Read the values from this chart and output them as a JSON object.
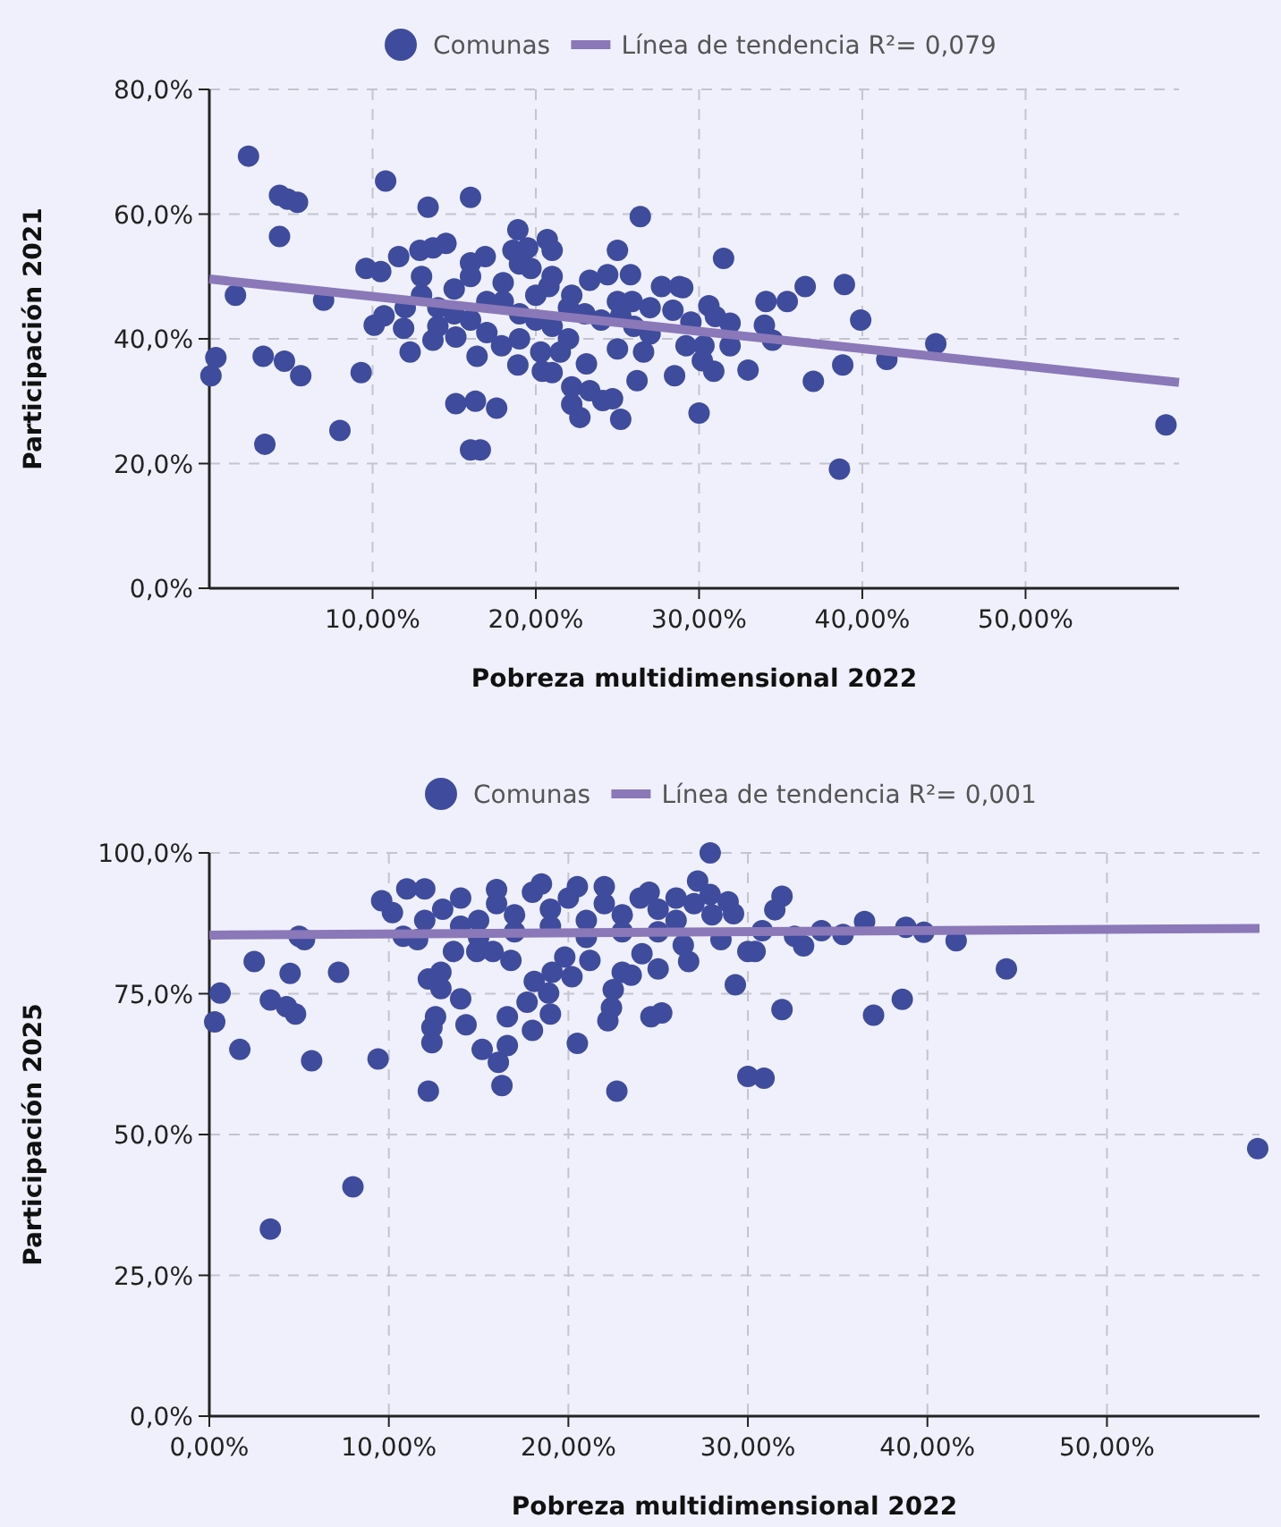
{
  "chart_data": [
    {
      "type": "scatter",
      "xlabel": "Pobreza multidimensional 2022",
      "ylabel": "Participación 2021",
      "legend": "top",
      "grid": true,
      "xlim": [
        0,
        59.4
      ],
      "ylim": [
        0,
        80
      ],
      "xticks": [
        {
          "value": 10,
          "label": "10,00%"
        },
        {
          "value": 20,
          "label": "20,00%"
        },
        {
          "value": 30,
          "label": "30,00%"
        },
        {
          "value": 40,
          "label": "40,00%"
        },
        {
          "value": 50,
          "label": "50,00%"
        }
      ],
      "yticks": [
        {
          "value": 0,
          "label": "0,0%"
        },
        {
          "value": 20,
          "label": "20,0%"
        },
        {
          "value": 40,
          "label": "40,0%"
        },
        {
          "value": 60,
          "label": "60,0%"
        },
        {
          "value": 80,
          "label": "80,0%"
        }
      ],
      "series": [
        {
          "name": "Comunas",
          "color": "#3f4b9c",
          "marker": "circle",
          "x": [
            0.1,
            0.4,
            2.4,
            1.6,
            4.3,
            4.8,
            5.4,
            4.3,
            3.3,
            4.6,
            5.6,
            3.4,
            8.0,
            7.0,
            9.3,
            10.8,
            13.4,
            16.0,
            15.1,
            16.3,
            17.6,
            16.0,
            16.6,
            18.9,
            26.4,
            25.0,
            31.5,
            26.2,
            25.2,
            22.2,
            22.7,
            24.1,
            24.7,
            28.5,
            30.0,
            20.4,
            21.0,
            22.2,
            12.3,
            16.4,
            18.9,
            9.6,
            10.1,
            36.5,
            38.9,
            35.4,
            34.1,
            39.9,
            34.0,
            34.5,
            44.5,
            41.5,
            38.8,
            37.0,
            33.0,
            38.6,
            58.6,
            30.6,
            31.0,
            31.9,
            31.9,
            30.3,
            30.2,
            30.9,
            29.0,
            10.5,
            11.6,
            10.7,
            11.9,
            12.9,
            13.7,
            14.5,
            13.7,
            15.1,
            16.9,
            16.0,
            17.9,
            18.6,
            19.5,
            20.7,
            21.0,
            19.7,
            20.3,
            21.5,
            20.8,
            22.2,
            23.3,
            24.4,
            25.8,
            25.9,
            25.2,
            25.0,
            23.1,
            23.3,
            26.6,
            27.0,
            27.7,
            28.8,
            28.4,
            29.5,
            29.2,
            14,
            15,
            16,
            17,
            18,
            19,
            20,
            21,
            22,
            23,
            17,
            19,
            15,
            13,
            12,
            18,
            20,
            24,
            26,
            21,
            16,
            14,
            22,
            25,
            27,
            13,
            19
          ],
          "values": [
            34.1,
            37.0,
            69.3,
            47.0,
            63.0,
            62.4,
            61.9,
            56.4,
            37.2,
            36.4,
            34.1,
            23.1,
            25.3,
            46.2,
            34.6,
            65.3,
            61.1,
            62.7,
            29.6,
            30.0,
            28.9,
            22.2,
            22.2,
            57.5,
            59.6,
            54.2,
            52.9,
            33.3,
            27.1,
            29.5,
            27.4,
            30.1,
            30.4,
            34.1,
            28.1,
            34.8,
            34.6,
            32.3,
            37.9,
            37.2,
            35.8,
            51.3,
            42.2,
            48.4,
            48.7,
            46.0,
            46.0,
            43.0,
            42.2,
            39.8,
            39.2,
            36.7,
            35.8,
            33.2,
            35.0,
            19.1,
            26.2,
            45.3,
            43.6,
            42.5,
            38.9,
            38.9,
            36.5,
            34.8,
            48.2,
            50.8,
            53.2,
            43.7,
            41.7,
            54.2,
            54.6,
            55.3,
            39.8,
            40.3,
            53.2,
            52.2,
            38.9,
            54.2,
            54.6,
            55.9,
            54.2,
            51.3,
            37.9,
            37.9,
            48.4,
            47.0,
            49.4,
            50.3,
            50.3,
            46.0,
            43.7,
            38.4,
            36.0,
            31.7,
            37.9,
            40.8,
            48.4,
            48.4,
            44.6,
            42.7,
            38.9,
            45,
            48,
            43,
            46,
            49,
            44,
            47,
            42,
            45,
            44,
            41,
            40,
            44,
            47,
            45,
            46,
            43,
            43,
            42,
            50,
            50,
            42,
            40,
            46,
            45,
            50,
            52
          ]
        },
        {
          "type": "line",
          "name": "Línea de tendencia R²= 0,079",
          "color": "#8a78b8",
          "x": [
            0,
            59.4
          ],
          "values": [
            49.6,
            33.0
          ]
        }
      ]
    },
    {
      "type": "scatter",
      "xlabel": "Pobreza multidimensional 2022",
      "ylabel": "Participación 2025",
      "legend": "top",
      "grid": true,
      "xlim": [
        0,
        58.5
      ],
      "ylim": [
        0,
        100
      ],
      "xticks": [
        {
          "value": 0,
          "label": "0,00%"
        },
        {
          "value": 10,
          "label": "10,00%"
        },
        {
          "value": 20,
          "label": "20,00%"
        },
        {
          "value": 30,
          "label": "30,00%"
        },
        {
          "value": 40,
          "label": "40,00%"
        },
        {
          "value": 50,
          "label": "50,00%"
        }
      ],
      "yticks": [
        {
          "value": 0,
          "label": "0,0%"
        },
        {
          "value": 25,
          "label": "25,0%"
        },
        {
          "value": 50,
          "label": "50,0%"
        },
        {
          "value": 75,
          "label": "75,0%"
        },
        {
          "value": 100,
          "label": "100,0%"
        }
      ],
      "series": [
        {
          "name": "Comunas",
          "color": "#3f4b9c",
          "marker": "circle",
          "x": [
            0.3,
            0.6,
            1.7,
            2.5,
            3.4,
            3.4,
            4.5,
            4.3,
            4.8,
            5.0,
            5.3,
            5.7,
            7.2,
            8.0,
            9.4,
            9.6,
            10.2,
            10.8,
            11.6,
            11.0,
            12.0,
            12.2,
            12.9,
            12.9,
            12.6,
            12.4,
            12.4,
            12.2,
            13.6,
            14.0,
            14.3,
            15.2,
            16.1,
            16.3,
            16.6,
            16.6,
            14.9,
            15.8,
            16.8,
            17.7,
            18.0,
            18.1,
            18.9,
            19.0,
            19.1,
            20.2,
            20.5,
            21.2,
            19.8,
            22.2,
            22.4,
            22.5,
            22.7,
            23.0,
            23.5,
            24.1,
            24.6,
            25.2,
            25.0,
            26.7,
            26.4,
            27.9,
            27.2,
            27.9,
            28.9,
            29.2,
            28.5,
            29.3,
            30.0,
            30.0,
            30.9,
            31.9,
            31.5,
            31.9,
            30.8,
            30.4,
            32.6,
            33.1,
            34.1,
            35.3,
            36.5,
            37.0,
            38.6,
            38.8,
            39.8,
            41.6,
            44.4,
            58.4,
            13,
            14,
            15,
            16,
            17,
            18,
            19,
            20,
            21,
            22,
            23,
            24,
            25,
            26,
            27,
            17,
            19,
            21,
            23,
            25,
            18.5,
            16,
            12,
            20.5,
            24.5,
            22,
            26,
            28,
            15,
            14
          ],
          "values": [
            70.0,
            75.1,
            65.1,
            80.7,
            73.9,
            33.2,
            78.6,
            72.7,
            71.4,
            85.2,
            84.6,
            63.1,
            78.8,
            40.7,
            63.4,
            91.5,
            89.4,
            85.2,
            84.6,
            93.6,
            93.6,
            77.6,
            78.8,
            75.9,
            70.9,
            69.0,
            66.3,
            57.7,
            82.5,
            74.1,
            69.5,
            65.1,
            62.8,
            58.7,
            70.9,
            65.8,
            82.5,
            82.5,
            80.9,
            73.5,
            68.5,
            77.2,
            75.1,
            71.4,
            78.8,
            78.0,
            66.2,
            80.9,
            81.5,
            70.2,
            72.5,
            75.7,
            57.7,
            78.8,
            78.3,
            82.1,
            70.9,
            71.6,
            79.4,
            80.7,
            83.6,
            100.0,
            95.0,
            92.6,
            91.3,
            89.2,
            84.6,
            76.6,
            60.3,
            82.5,
            60.0,
            72.2,
            89.9,
            92.3,
            86.2,
            82.5,
            85.2,
            83.5,
            86.2,
            85.5,
            87.8,
            71.2,
            74.0,
            86.8,
            85.9,
            84.4,
            79.4,
            47.5,
            90,
            92,
            88,
            91,
            89,
            93,
            90,
            92,
            88,
            91,
            89,
            92,
            90,
            88,
            91,
            86,
            87,
            85,
            86,
            86,
            94.5,
            93.5,
            88,
            94,
            93,
            94,
            92,
            89,
            85,
            87
          ]
        },
        {
          "type": "line",
          "name": "Línea de tendencia R²= 0,001",
          "color": "#8a78b8",
          "x": [
            0,
            58.5
          ],
          "values": [
            85.4,
            86.6
          ]
        }
      ]
    }
  ]
}
